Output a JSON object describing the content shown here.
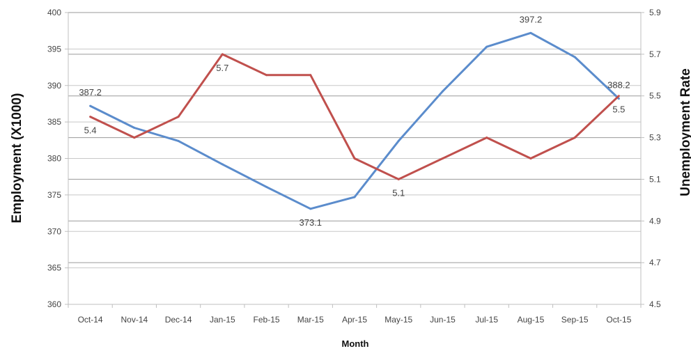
{
  "chart_data": {
    "type": "line",
    "categories": [
      "Oct-14",
      "Nov-14",
      "Dec-14",
      "Jan-15",
      "Feb-15",
      "Mar-15",
      "Apr-15",
      "May-15",
      "Jun-15",
      "Jul-15",
      "Aug-15",
      "Sep-15",
      "Oct-15"
    ],
    "xlabel": "Month",
    "y_left": {
      "label": "Employment (X1000)",
      "ylim": [
        360,
        400
      ],
      "ticks": [
        360,
        365,
        370,
        375,
        380,
        385,
        390,
        395,
        400
      ]
    },
    "y_right": {
      "label": "Unemployment Rate",
      "ylim": [
        4.5,
        5.9
      ],
      "ticks": [
        "4.5",
        "4.7",
        "4.9",
        "5.1",
        "5.3",
        "5.5",
        "5.7",
        "5.9"
      ]
    },
    "series": [
      {
        "axis": "left",
        "color": "#5b8ccc",
        "values": [
          387.2,
          384.2,
          382.4,
          379.2,
          376.1,
          373.1,
          374.7,
          382.4,
          389.2,
          395.3,
          397.2,
          393.9,
          388.2
        ],
        "labels": [
          {
            "index": 0,
            "text": "387.2",
            "pos": "above"
          },
          {
            "index": 5,
            "text": "373.1",
            "pos": "below"
          },
          {
            "index": 10,
            "text": "397.2",
            "pos": "above"
          },
          {
            "index": 12,
            "text": "388.2",
            "pos": "above"
          }
        ]
      },
      {
        "axis": "right",
        "color": "#c0504d",
        "values": [
          5.4,
          5.3,
          5.4,
          5.7,
          5.6,
          5.6,
          5.2,
          5.1,
          5.2,
          5.3,
          5.2,
          5.3,
          5.5
        ],
        "labels": [
          {
            "index": 0,
            "text": "5.4",
            "pos": "below"
          },
          {
            "index": 3,
            "text": "5.7",
            "pos": "below"
          },
          {
            "index": 7,
            "text": "5.1",
            "pos": "below"
          },
          {
            "index": 12,
            "text": "5.5",
            "pos": "below"
          }
        ]
      }
    ],
    "grid": true
  }
}
